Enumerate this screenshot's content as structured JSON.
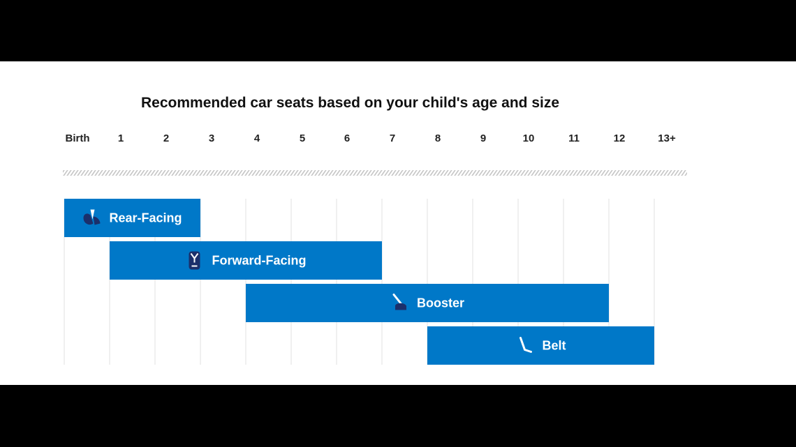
{
  "chart_data": {
    "type": "bar",
    "orientation": "horizontal-range",
    "title": "Recommended car seats based on your child's age and size",
    "x_ticks": [
      "Birth",
      "1",
      "2",
      "3",
      "4",
      "5",
      "6",
      "7",
      "8",
      "9",
      "10",
      "11",
      "12",
      "13+"
    ],
    "xlim": [
      0,
      13
    ],
    "grid": true,
    "series": [
      {
        "name": "Rear-Facing",
        "start": 0,
        "end": 3,
        "icon": "rear-facing-seat-icon"
      },
      {
        "name": "Forward-Facing",
        "start": 1,
        "end": 7,
        "icon": "forward-facing-seat-icon"
      },
      {
        "name": "Booster",
        "start": 4,
        "end": 12,
        "icon": "booster-seat-icon"
      },
      {
        "name": "Belt",
        "start": 8,
        "end": 13,
        "icon": "seat-belt-icon"
      }
    ],
    "colors": {
      "bar": "#0078c8",
      "icon_dark": "#1b2f6b",
      "grid": "#e2e2e2",
      "stripe": "#c8c8c8"
    }
  }
}
